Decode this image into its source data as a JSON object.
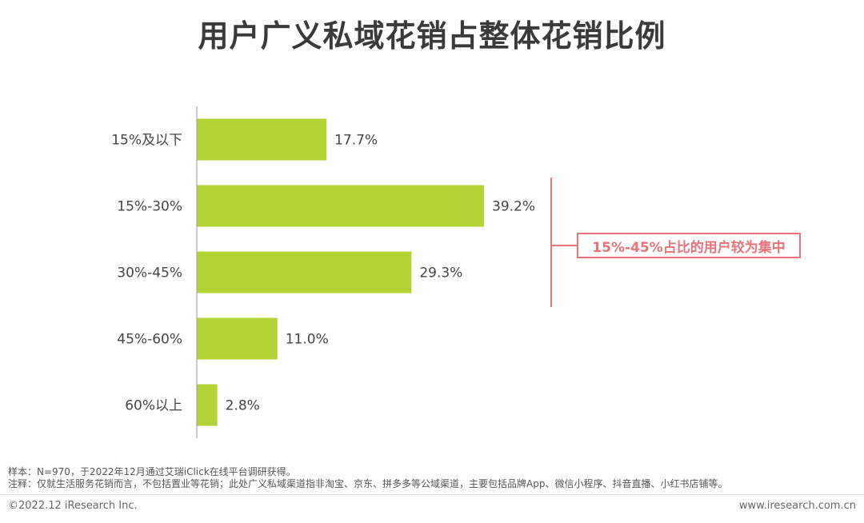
{
  "title": "用户广义私域花销占整体花销比例",
  "chart_data": {
    "type": "bar",
    "orientation": "horizontal",
    "categories": [
      "15%及以下",
      "15%-30%",
      "30%-45%",
      "45%-60%",
      "60%以上"
    ],
    "values": [
      17.7,
      39.2,
      29.3,
      11.0,
      2.8
    ],
    "value_labels": [
      "17.7%",
      "39.2%",
      "29.3%",
      "11.0%",
      "2.8%"
    ],
    "xlim": [
      0,
      40
    ],
    "grid": false,
    "bar_color": "#b3d334",
    "annotation": "15%-45%占比的用户较为集中"
  },
  "notes": {
    "sample": "样本：N=970，于2022年12月通过艾瑞iClick在线平台调研获得。",
    "remark": "注释：仅就生活服务花销而言，不包括置业等花销；此处广义私域渠道指非淘宝、京东、拼多多等公域渠道，主要包括品牌App、微信小程序、抖音直播、小红书店铺等。"
  },
  "footer": {
    "copyright": "©2022.12 iResearch Inc.",
    "website": "www.iresearch.com.cn"
  },
  "colors": {
    "bar": "#b3d334",
    "accent": "#e8737a"
  }
}
